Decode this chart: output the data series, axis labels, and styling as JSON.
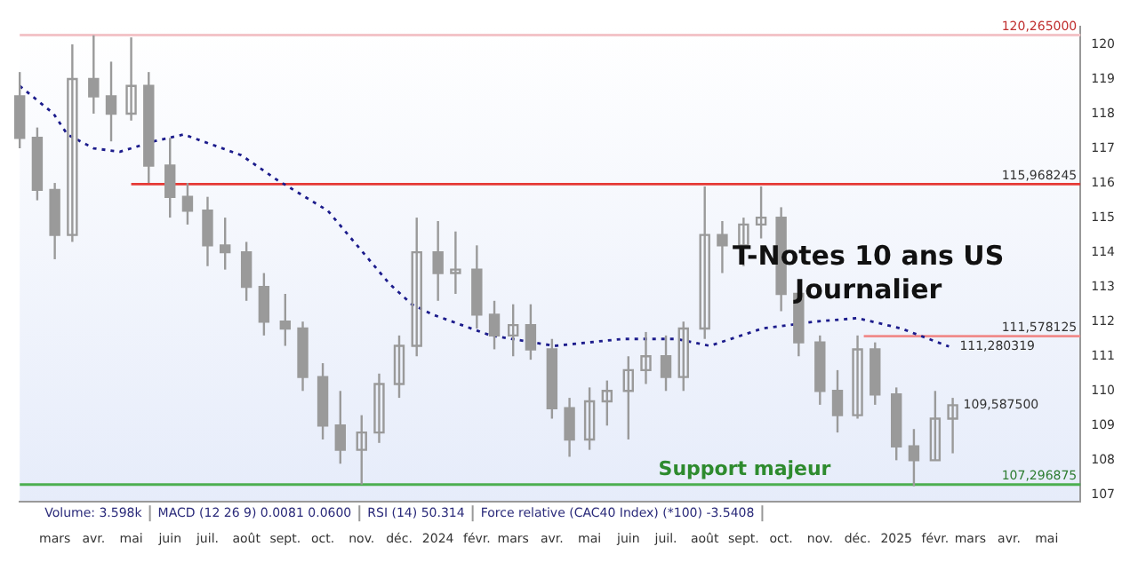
{
  "chart_data": {
    "type": "candlestick",
    "title": "T-Notes 10 ans US",
    "subtitle": "Journalier",
    "color": "#9a9a9a",
    "x": [
      "2023-02-01",
      "2023-02-15",
      "2023-03-01",
      "2023-03-15",
      "2023-04-01",
      "2023-04-15",
      "2023-05-01",
      "2023-05-15",
      "2023-06-01",
      "2023-06-15",
      "2023-07-01",
      "2023-07-15",
      "2023-08-01",
      "2023-08-15",
      "2023-09-01",
      "2023-09-15",
      "2023-10-01",
      "2023-10-15",
      "2023-11-01",
      "2023-11-15",
      "2023-12-01",
      "2023-12-15",
      "2024-01-01",
      "2024-01-15",
      "2024-02-01",
      "2024-02-15",
      "2024-03-01",
      "2024-03-15",
      "2024-04-01",
      "2024-04-15",
      "2024-05-01",
      "2024-05-15",
      "2024-06-01",
      "2024-06-15",
      "2024-07-01",
      "2024-07-15",
      "2024-08-01",
      "2024-08-15",
      "2024-09-01",
      "2024-09-15",
      "2024-10-01",
      "2024-10-15",
      "2024-11-01",
      "2024-11-15",
      "2024-12-01",
      "2024-12-15",
      "2025-01-01",
      "2025-01-15",
      "2025-02-01",
      "2025-02-15"
    ],
    "ohlc": [
      [
        118.5,
        119.2,
        117.0,
        117.3
      ],
      [
        117.3,
        117.6,
        115.5,
        115.8
      ],
      [
        115.8,
        116.0,
        113.8,
        114.5
      ],
      [
        114.5,
        120.0,
        114.3,
        119.0
      ],
      [
        119.0,
        120.26,
        118.0,
        118.5
      ],
      [
        118.5,
        119.5,
        117.2,
        118.0
      ],
      [
        118.0,
        120.2,
        117.8,
        118.8
      ],
      [
        118.8,
        119.2,
        116.0,
        116.5
      ],
      [
        116.5,
        117.3,
        115.0,
        115.6
      ],
      [
        115.6,
        116.0,
        114.8,
        115.2
      ],
      [
        115.2,
        115.6,
        113.6,
        114.2
      ],
      [
        114.2,
        115.0,
        113.5,
        114.0
      ],
      [
        114.0,
        114.3,
        112.6,
        113.0
      ],
      [
        113.0,
        113.4,
        111.6,
        112.0
      ],
      [
        112.0,
        112.8,
        111.3,
        111.8
      ],
      [
        111.8,
        112.0,
        110.0,
        110.4
      ],
      [
        110.4,
        110.8,
        108.6,
        109.0
      ],
      [
        109.0,
        110.0,
        107.9,
        108.3
      ],
      [
        108.3,
        109.3,
        107.3,
        108.8
      ],
      [
        108.8,
        110.5,
        108.5,
        110.2
      ],
      [
        110.2,
        111.6,
        109.8,
        111.3
      ],
      [
        111.3,
        115.0,
        111.0,
        114.0
      ],
      [
        114.0,
        114.9,
        112.6,
        113.4
      ],
      [
        113.4,
        114.6,
        112.8,
        113.5
      ],
      [
        113.5,
        114.2,
        111.8,
        112.2
      ],
      [
        112.2,
        112.6,
        111.2,
        111.6
      ],
      [
        111.6,
        112.5,
        111.0,
        111.9
      ],
      [
        111.9,
        112.5,
        110.9,
        111.2
      ],
      [
        111.2,
        111.5,
        109.2,
        109.5
      ],
      [
        109.5,
        109.8,
        108.1,
        108.6
      ],
      [
        108.6,
        110.1,
        108.3,
        109.7
      ],
      [
        109.7,
        110.3,
        109.0,
        110.0
      ],
      [
        110.0,
        111.0,
        108.6,
        110.6
      ],
      [
        110.6,
        111.7,
        110.2,
        111.0
      ],
      [
        111.0,
        111.6,
        110.0,
        110.4
      ],
      [
        110.4,
        112.0,
        110.0,
        111.8
      ],
      [
        111.8,
        115.9,
        111.5,
        114.5
      ],
      [
        114.5,
        114.9,
        113.4,
        114.2
      ],
      [
        114.2,
        115.0,
        113.6,
        114.8
      ],
      [
        114.8,
        115.9,
        114.4,
        115.0
      ],
      [
        115.0,
        115.3,
        112.3,
        112.8
      ],
      [
        112.8,
        113.0,
        111.0,
        111.4
      ],
      [
        111.4,
        111.6,
        109.6,
        110.0
      ],
      [
        110.0,
        110.6,
        108.8,
        109.3
      ],
      [
        109.3,
        111.6,
        109.2,
        111.2
      ],
      [
        111.2,
        111.4,
        109.6,
        109.9
      ],
      [
        109.9,
        110.1,
        108.0,
        108.4
      ],
      [
        108.4,
        108.9,
        107.25,
        108.0
      ],
      [
        108.0,
        110.0,
        108.0,
        109.2
      ],
      [
        109.2,
        109.8,
        108.2,
        109.5875
      ]
    ],
    "series": [
      {
        "type": "line",
        "color": "#1c1c8c",
        "line_style": "dotted",
        "marker": "none",
        "x": [
          "2023-02-01",
          "2023-02-28",
          "2023-03-11",
          "2023-04-01",
          "2023-04-22",
          "2023-05-19",
          "2023-06-12",
          "2023-07-28",
          "2023-08-25",
          "2023-10-05",
          "2023-11-02",
          "2023-11-23",
          "2023-12-11",
          "2023-12-28",
          "2024-02-12",
          "2024-04-03",
          "2024-05-28",
          "2024-07-09",
          "2024-08-05",
          "2024-09-16",
          "2024-10-28",
          "2024-12-01",
          "2025-01-05",
          "2025-02-12"
        ],
        "values": [
          118.8,
          118.0,
          117.4,
          117.0,
          116.9,
          117.2,
          117.4,
          116.8,
          116.1,
          115.2,
          114.0,
          113.1,
          112.5,
          112.2,
          111.6,
          111.3,
          111.5,
          111.5,
          111.3,
          111.8,
          112.0,
          112.1,
          111.8,
          111.280319
        ]
      },
      {
        "type": "line",
        "color": "#e53935",
        "line_style": "solid",
        "marker": "none",
        "x": [
          "2023-05-01",
          "2025-05-28"
        ],
        "values": [
          115.968245,
          115.968245
        ]
      },
      {
        "type": "line",
        "color": "#f08a8a",
        "line_style": "solid",
        "marker": "none",
        "x": [
          "2024-12-06",
          "2025-05-28"
        ],
        "values": [
          111.578125,
          111.578125
        ]
      }
    ],
    "ref_lines": [
      {
        "axis": "y",
        "value": 120.265,
        "label": "120,265000",
        "color": "#f3c4c8"
      },
      {
        "axis": "y",
        "value": 107.296875,
        "label": "107,296875",
        "color": "#4caf50"
      }
    ],
    "annotations": [
      {
        "text": "115,968245",
        "x": "2025-05-28",
        "y": 115.968245
      },
      {
        "text": "111,578125",
        "x": "2025-05-28",
        "y": 111.578125
      },
      {
        "text": "111,280319",
        "x": "2025-02-12",
        "y": 111.280319
      },
      {
        "text": "109,587500",
        "x": "2025-02-15",
        "y": 109.5875
      },
      {
        "text": "Support majeur",
        "x": "2024-06-25",
        "y": 107.296875
      },
      "Volume: 3.598k",
      "MACD (12 26 9) 0.0081 0.0600",
      "RSI (14) 50.314",
      "Force relative (CAC40 Index) (*100) -3.5408"
    ],
    "xlim": [
      "2023-02-01",
      "2025-05-28"
    ],
    "xticks": [
      {
        "value": "2023-03-01",
        "label": "mars"
      },
      {
        "value": "2023-04-01",
        "label": "avr."
      },
      {
        "value": "2023-05-01",
        "label": "mai"
      },
      {
        "value": "2023-06-01",
        "label": "juin"
      },
      {
        "value": "2023-07-01",
        "label": "juil."
      },
      {
        "value": "2023-08-01",
        "label": "août"
      },
      {
        "value": "2023-09-01",
        "label": "sept."
      },
      {
        "value": "2023-10-01",
        "label": "oct."
      },
      {
        "value": "2023-11-01",
        "label": "nov."
      },
      {
        "value": "2023-12-01",
        "label": "déc."
      },
      {
        "value": "2024-01-01",
        "label": "2024"
      },
      {
        "value": "2024-02-01",
        "label": "févr."
      },
      {
        "value": "2024-03-01",
        "label": "mars"
      },
      {
        "value": "2024-04-01",
        "label": "avr."
      },
      {
        "value": "2024-05-01",
        "label": "mai"
      },
      {
        "value": "2024-06-01",
        "label": "juin"
      },
      {
        "value": "2024-07-01",
        "label": "juil."
      },
      {
        "value": "2024-08-01",
        "label": "août"
      },
      {
        "value": "2024-09-01",
        "label": "sept."
      },
      {
        "value": "2024-10-01",
        "label": "oct."
      },
      {
        "value": "2024-11-01",
        "label": "nov."
      },
      {
        "value": "2024-12-01",
        "label": "déc."
      },
      {
        "value": "2025-01-01",
        "label": "2025"
      },
      {
        "value": "2025-02-01",
        "label": "févr."
      },
      {
        "value": "2025-03-01",
        "label": "mars"
      },
      {
        "value": "2025-04-01",
        "label": "avr."
      },
      {
        "value": "2025-05-01",
        "label": "mai"
      }
    ],
    "ylim": [
      106.8,
      120.5
    ],
    "yticks": [
      107,
      108,
      109,
      110,
      111,
      112,
      113,
      114,
      115,
      116,
      117,
      118,
      119,
      120
    ],
    "grid": false,
    "legend": false
  }
}
